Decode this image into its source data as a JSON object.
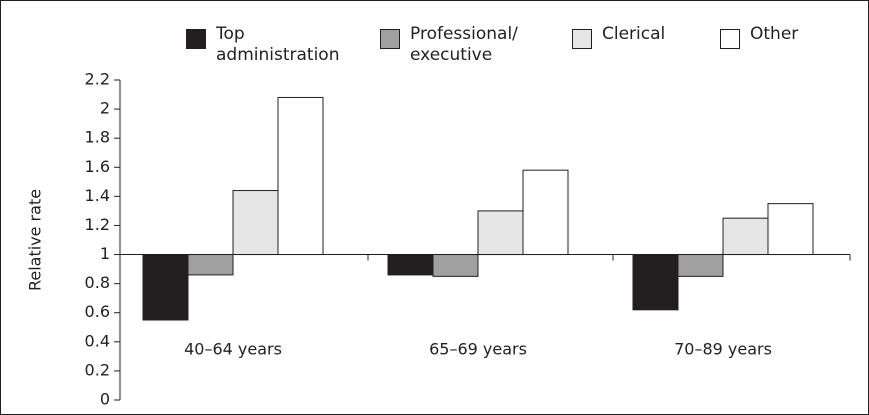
{
  "chart_data": {
    "type": "bar",
    "y_label": "Relative rate",
    "categories": [
      "40–64 years",
      "65–69 years",
      "70–89 years"
    ],
    "series": [
      {
        "name": "Top administration",
        "color": "#231f20",
        "values": [
          0.55,
          0.86,
          0.62
        ]
      },
      {
        "name": "Professional/ executive",
        "color": "#a0a0a0",
        "values": [
          0.86,
          0.85,
          0.85
        ]
      },
      {
        "name": "Clerical",
        "color": "#e6e6e6",
        "values": [
          1.44,
          1.3,
          1.25
        ]
      },
      {
        "name": "Other",
        "color": "#ffffff",
        "values": [
          2.08,
          1.58,
          1.35
        ]
      }
    ],
    "baseline": 1,
    "ylim": [
      0,
      2.2
    ],
    "yticks": [
      0,
      0.2,
      0.4,
      0.6,
      0.8,
      1,
      1.2,
      1.4,
      1.6,
      1.8,
      2,
      2.2
    ],
    "legend": "top"
  }
}
